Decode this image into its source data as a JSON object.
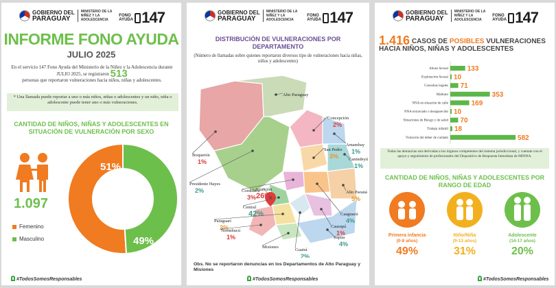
{
  "header": {
    "gob_line1": "GOBIERNO DEL",
    "gob_line2": "PARAGUAY",
    "ministry": "MINISTERIO DE LA NIÑEZ Y LA ADOLESCENCIA",
    "fono_label": "FONO AYUDA",
    "fono_number": "147"
  },
  "footer_hashtag": "#TodosSomosResponsables",
  "panel1": {
    "title": "INFORME FONO AYUDA",
    "subtitle": "JULIO 2025",
    "intro_before": "En el servicio 147 Fono Ayuda del Ministerio de la Niñez y la Adolescencia durante JULIO 2025, se registraron",
    "intro_number": "513",
    "intro_after": "personas que reportaron vulneraciones hacia niños, niñas y adolescentes.",
    "note": "* Una llamada puede reportar a uno o más niños, niñas o adolescentes y un niño, niña o adolescente puede tener uno o más vulneraciones.",
    "section_title": "CANTIDAD DE NIÑOS, NIÑAS Y ADOLESCENTES EN SITUACIÓN DE VULNERACIÓN POR SEXO",
    "total": "1.097",
    "legend_female": "Femenino",
    "legend_male": "Masculino"
  },
  "panel2": {
    "title": "DISTRIBUCIÓN DE VULNERACIONES POR DEPARTAMENTO",
    "subtitle": "(Número de llamadas sobre quienes reportaron diversos tipo de vulneraciones hacia niñas, niños y adolescentes)",
    "obs": "Obs. No se reportaron denuncias en los Departamentos de Alto Paraguay y Misiones"
  },
  "panel3": {
    "title_number": "1.416",
    "title_word1": "CASOS DE",
    "title_word2": "POSIBLES",
    "title_rest": "VULNERACIONES HACIA NIÑOS, NIÑAS Y ADOLESCENTES",
    "note": "Todas las denuncias son derivadas a los órganos competentes del sistema jurisdiccional, y cuentan con el apoyo y seguimiento de profesionales del Dispositivo de Respuesta Inmediata de MINNA.",
    "section_title": "CANTIDAD DE NIÑOS, NIÑAS Y ADOLESCENTES POR RANGO DE EDAD"
  },
  "colors": {
    "green": "#6dbf4b",
    "orange": "#f07b20",
    "yellow": "#f2b01e",
    "bar_green": "#5cb748"
  },
  "chart_data": [
    {
      "type": "pie",
      "categories": [
        "Femenino",
        "Masculino"
      ],
      "values": [
        51,
        49
      ],
      "labels": [
        "51%",
        "49%"
      ],
      "colors": [
        "#f07b20",
        "#6dbf4b"
      ]
    },
    {
      "type": "table",
      "title": "DISTRIBUCIÓN DE VULNERACIONES POR DEPARTAMENTO",
      "rows": [
        {
          "name": "Alto Paraguay",
          "value": ""
        },
        {
          "name": "Concepción",
          "value": "2%"
        },
        {
          "name": "Amambay",
          "value": "1%"
        },
        {
          "name": "San Pedro",
          "value": "3%"
        },
        {
          "name": "Canindeyú",
          "value": "1%"
        },
        {
          "name": "Boquerón",
          "value": "1%"
        },
        {
          "name": "Presidente Hayes",
          "value": "2%"
        },
        {
          "name": "Cordillera",
          "value": "3%"
        },
        {
          "name": "Asunción",
          "value": "26%"
        },
        {
          "name": "Alto Paraná",
          "value": "5%"
        },
        {
          "name": "Central",
          "value": "42%"
        },
        {
          "name": "Caaguazú",
          "value": "4%"
        },
        {
          "name": "Paraguarí",
          "value": "2%"
        },
        {
          "name": "Ñeembucú",
          "value": "1%"
        },
        {
          "name": "Caazapá",
          "value": "1%"
        },
        {
          "name": "Misiones",
          "value": ""
        },
        {
          "name": "Itapúa",
          "value": "4%"
        },
        {
          "name": "Guairá",
          "value": "2%"
        }
      ]
    },
    {
      "type": "bar",
      "orientation": "horizontal",
      "categories": [
        "Abuso Sexual",
        "Explotación Sexual",
        "Consultas legales",
        "Maltrato",
        "NNA en situación de calle",
        "NNA extraviado o desaparecido",
        "Situaciones de Riesgo y de salud",
        "Trabajo infantil",
        "Violación del deber de cuidado"
      ],
      "values": [
        133,
        10,
        71,
        353,
        169,
        10,
        70,
        18,
        582
      ],
      "xlim": [
        0,
        600
      ]
    },
    {
      "type": "pie",
      "title": "CANTIDAD DE NIÑOS, NIÑAS Y ADOLESCENTES POR RANGO DE EDAD",
      "categories": [
        "Primera infancia",
        "Niño/Niña",
        "Adolescente"
      ],
      "ranges": [
        "(0-8 años)",
        "(9-13 años)",
        "(14-17 años)"
      ],
      "values": [
        49,
        31,
        20
      ],
      "labels": [
        "49%",
        "31%",
        "20%"
      ],
      "colors": [
        "#f07b20",
        "#f2b01e",
        "#6dbf4b"
      ]
    }
  ]
}
